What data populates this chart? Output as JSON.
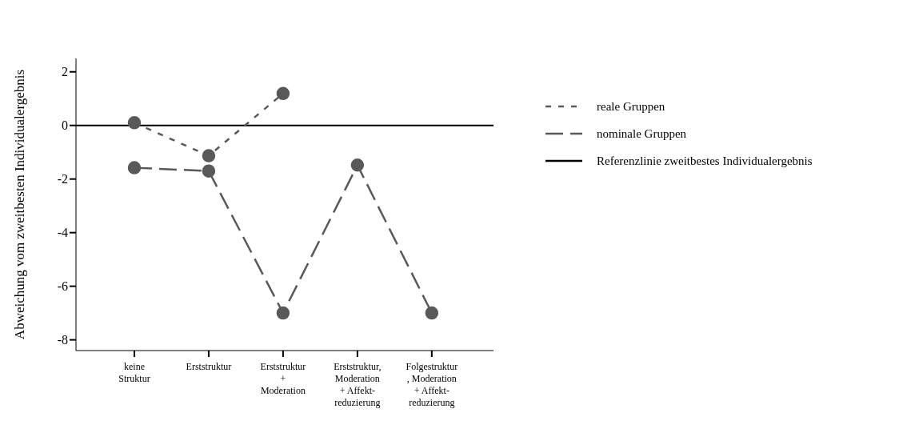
{
  "chart_data": {
    "type": "line",
    "ylabel": "Abweichung vom zweitbesten Individualergebnis",
    "categories": [
      "keine\nStruktur",
      "Erststruktur",
      "Erststruktur\n+\nModeration",
      "Erststruktur,\nModeration\n+ Affekt-\nreduzierung",
      "Folgestruktur\n, Moderation\n+ Affekt-\nreduzierung"
    ],
    "series": [
      {
        "name": "reale Gruppen",
        "color": "#595959",
        "line_style": "dashed",
        "values": [
          0.1,
          -1.13,
          1.19,
          null,
          null
        ]
      },
      {
        "name": "nominale Gruppen",
        "color": "#595959",
        "line_style": "longdash",
        "values": [
          -1.58,
          -1.7,
          -7.0,
          -1.48,
          -7.0
        ]
      }
    ],
    "ylim": [
      -8.4,
      2.5
    ],
    "yticks": [
      -8,
      -6,
      -4,
      -2,
      0,
      2
    ],
    "ref_lines": [
      {
        "axis": "y",
        "value": 0,
        "label": "Referenzlinie zweitbestes Individualergebnis",
        "color": "#000000",
        "line_style": "solid"
      }
    ],
    "marker": "circle",
    "grid": false,
    "legend": "right"
  }
}
